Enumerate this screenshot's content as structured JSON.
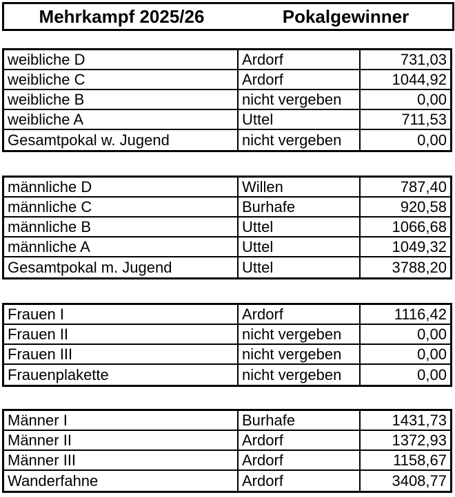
{
  "header": {
    "title_left": "Mehrkampf 2025/26",
    "title_right": "Pokalgewinner"
  },
  "columns": [
    "category",
    "winner",
    "points"
  ],
  "tables": [
    {
      "rows": [
        {
          "category": "weibliche D",
          "winner": "Ardorf",
          "points": "731,03"
        },
        {
          "category": "weibliche C",
          "winner": "Ardorf",
          "points": "1044,92"
        },
        {
          "category": "weibliche B",
          "winner": "nicht vergeben",
          "points": "0,00"
        },
        {
          "category": "weibliche A",
          "winner": "Uttel",
          "points": "711,53"
        },
        {
          "category": "Gesamtpokal w. Jugend",
          "winner": "nicht vergeben",
          "points": "0,00"
        }
      ]
    },
    {
      "rows": [
        {
          "category": "männliche D",
          "winner": "Willen",
          "points": "787,40"
        },
        {
          "category": "männliche C",
          "winner": "Burhafe",
          "points": "920,58"
        },
        {
          "category": "männliche B",
          "winner": "Uttel",
          "points": "1066,68"
        },
        {
          "category": "männliche A",
          "winner": "Uttel",
          "points": "1049,32"
        },
        {
          "category": "Gesamtpokal m. Jugend",
          "winner": "Uttel",
          "points": "3788,20"
        }
      ]
    },
    {
      "rows": [
        {
          "category": "Frauen I",
          "winner": "Ardorf",
          "points": "1116,42"
        },
        {
          "category": "Frauen II",
          "winner": "nicht vergeben",
          "points": "0,00"
        },
        {
          "category": "Frauen III",
          "winner": "nicht vergeben",
          "points": "0,00"
        },
        {
          "category": "Frauenplakette",
          "winner": "nicht vergeben",
          "points": "0,00"
        }
      ]
    },
    {
      "rows": [
        {
          "category": "Männer I",
          "winner": "Burhafe",
          "points": "1431,73"
        },
        {
          "category": "Männer II",
          "winner": "Ardorf",
          "points": "1372,93"
        },
        {
          "category": "Männer III",
          "winner": "Ardorf",
          "points": "1158,67"
        },
        {
          "category": "Wanderfahne",
          "winner": "Ardorf",
          "points": "3408,77"
        }
      ]
    }
  ],
  "colors": {
    "background": "#ffffff",
    "border": "#000000",
    "text": "#000000"
  }
}
